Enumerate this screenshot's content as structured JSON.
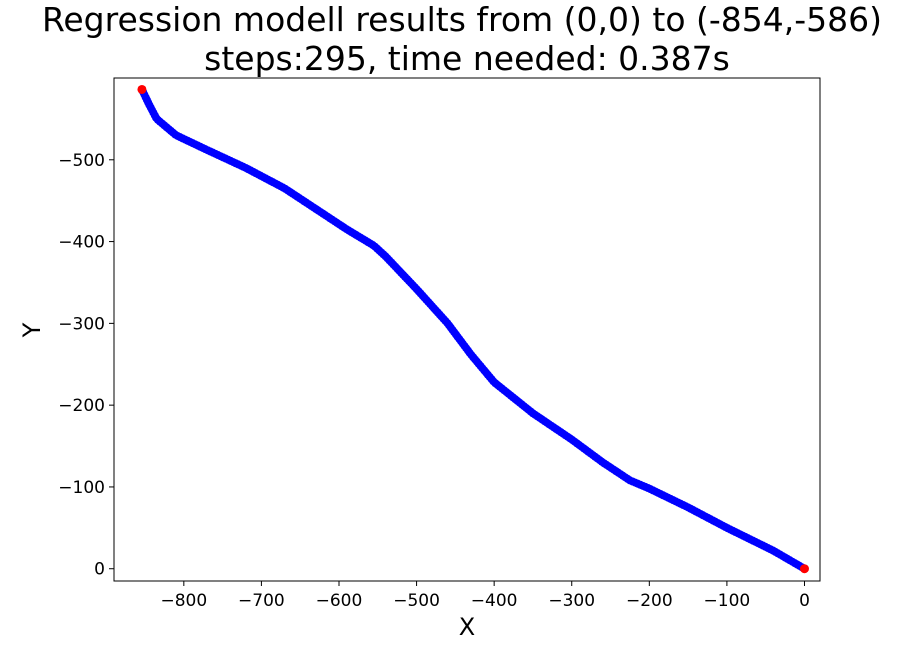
{
  "chart_data": {
    "type": "scatter",
    "title": [
      "Regression modell results from (0,0) to (-854,-586)",
      "steps:295, time needed: 0.387s"
    ],
    "xlabel": "X",
    "ylabel": "Y",
    "xlim": [
      -890,
      20
    ],
    "ylim": [
      -600,
      15
    ],
    "y_inverted": true,
    "x_ticks": [
      -800,
      -700,
      -600,
      -500,
      -400,
      -300,
      -200,
      -100,
      0
    ],
    "x_tick_labels": [
      "−800",
      "−700",
      "−600",
      "−500",
      "−400",
      "−300",
      "−200",
      "−100",
      "0"
    ],
    "y_ticks": [
      -500,
      -400,
      -300,
      -200,
      -100,
      0
    ],
    "y_tick_labels": [
      "−500",
      "−400",
      "−300",
      "−200",
      "−100",
      "0"
    ],
    "grid": false,
    "steps": 295,
    "series": [
      {
        "color": "#0000ff",
        "marker": "circle",
        "path_keypoints": [
          [
            0,
            0
          ],
          [
            -40,
            -22
          ],
          [
            -100,
            -50
          ],
          [
            -150,
            -75
          ],
          [
            -200,
            -98
          ],
          [
            -225,
            -108
          ],
          [
            -260,
            -130
          ],
          [
            -300,
            -158
          ],
          [
            -350,
            -190
          ],
          [
            -400,
            -228
          ],
          [
            -430,
            -262
          ],
          [
            -460,
            -300
          ],
          [
            -500,
            -342
          ],
          [
            -540,
            -382
          ],
          [
            -555,
            -395
          ],
          [
            -590,
            -415
          ],
          [
            -630,
            -440
          ],
          [
            -670,
            -465
          ],
          [
            -720,
            -490
          ],
          [
            -770,
            -512
          ],
          [
            -810,
            -530
          ],
          [
            -835,
            -550
          ],
          [
            -845,
            -568
          ],
          [
            -850,
            -578
          ],
          [
            -854,
            -586
          ]
        ]
      },
      {
        "name_role": "endpoints",
        "color": "#ff0000",
        "marker": "circle",
        "points": [
          [
            0,
            0
          ],
          [
            -854,
            -586
          ]
        ]
      }
    ]
  }
}
